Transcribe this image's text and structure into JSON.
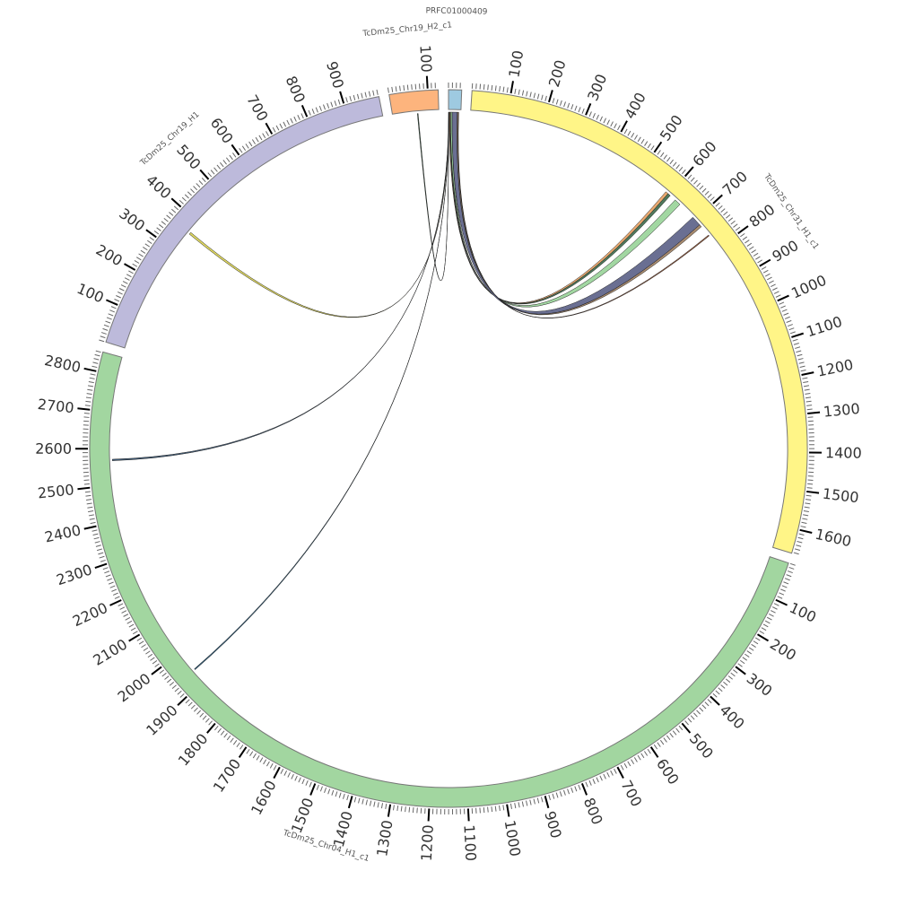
{
  "chart_data": {
    "type": "chord",
    "title": "",
    "ideograms": [
      {
        "name": "PRFC01000409",
        "length": 34,
        "color": "#9ecae1"
      },
      {
        "name": "TcDm25_Chr31_H1_c1",
        "length": 1663,
        "color": "#fff587"
      },
      {
        "name": "TcDm25_Chr04_H1_c1",
        "length": 2852,
        "color": "#a2d6a0"
      },
      {
        "name": "TcDm25_Chr19_H1",
        "length": 992,
        "color": "#bdbadb"
      },
      {
        "name": "TcDm25_Chr19_H2_c1",
        "length": 127,
        "color": "#fdb47d"
      }
    ],
    "tick_major": 100,
    "tick_minor": 10,
    "links": [
      {
        "from": "PRFC01000409",
        "from_range": [
          2,
          4
        ],
        "to": "TcDm25_Chr31_H1_c1",
        "to_range": [
          588,
          596
        ],
        "color": "#e8a060"
      },
      {
        "from": "PRFC01000409",
        "from_range": [
          4,
          6
        ],
        "to": "TcDm25_Chr31_H1_c1",
        "to_range": [
          596,
          604
        ],
        "color": "#3c6a4a"
      },
      {
        "from": "PRFC01000409",
        "from_range": [
          6,
          10
        ],
        "to": "TcDm25_Chr31_H1_c1",
        "to_range": [
          622,
          640
        ],
        "color": "#98d398"
      },
      {
        "from": "PRFC01000409",
        "from_range": [
          10,
          24
        ],
        "to": "TcDm25_Chr31_H1_c1",
        "to_range": [
          690,
          718
        ],
        "color": "#5a5f86"
      },
      {
        "from": "PRFC01000409",
        "from_range": [
          24,
          27
        ],
        "to": "TcDm25_Chr31_H1_c1",
        "to_range": [
          718,
          725
        ],
        "color": "#a08060"
      },
      {
        "from": "PRFC01000409",
        "from_range": [
          27,
          28
        ],
        "to": "TcDm25_Chr31_H1_c1",
        "to_range": [
          755,
          758
        ],
        "color": "#8b4a2a"
      },
      {
        "from": "PRFC01000409",
        "from_range": [
          0,
          1
        ],
        "to": "TcDm25_Chr19_H1",
        "to_range": [
          360,
          366
        ],
        "color": "#d8d050"
      },
      {
        "from": "PRFC01000409",
        "from_range": [
          1,
          1.5
        ],
        "to": "TcDm25_Chr04_H1_c1",
        "to_range": [
          2567,
          2571
        ],
        "color": "#2a4a6a"
      },
      {
        "from": "PRFC01000409",
        "from_range": [
          1.5,
          2
        ],
        "to": "TcDm25_Chr04_H1_c1",
        "to_range": [
          1938,
          1941
        ],
        "color": "#1a4a6a"
      },
      {
        "from": "PRFC01000409",
        "from_range": [
          0.5,
          1
        ],
        "to": "TcDm25_Chr19_H2_c1",
        "to_range": [
          68,
          70
        ],
        "color": "#2a5a3a"
      }
    ]
  }
}
